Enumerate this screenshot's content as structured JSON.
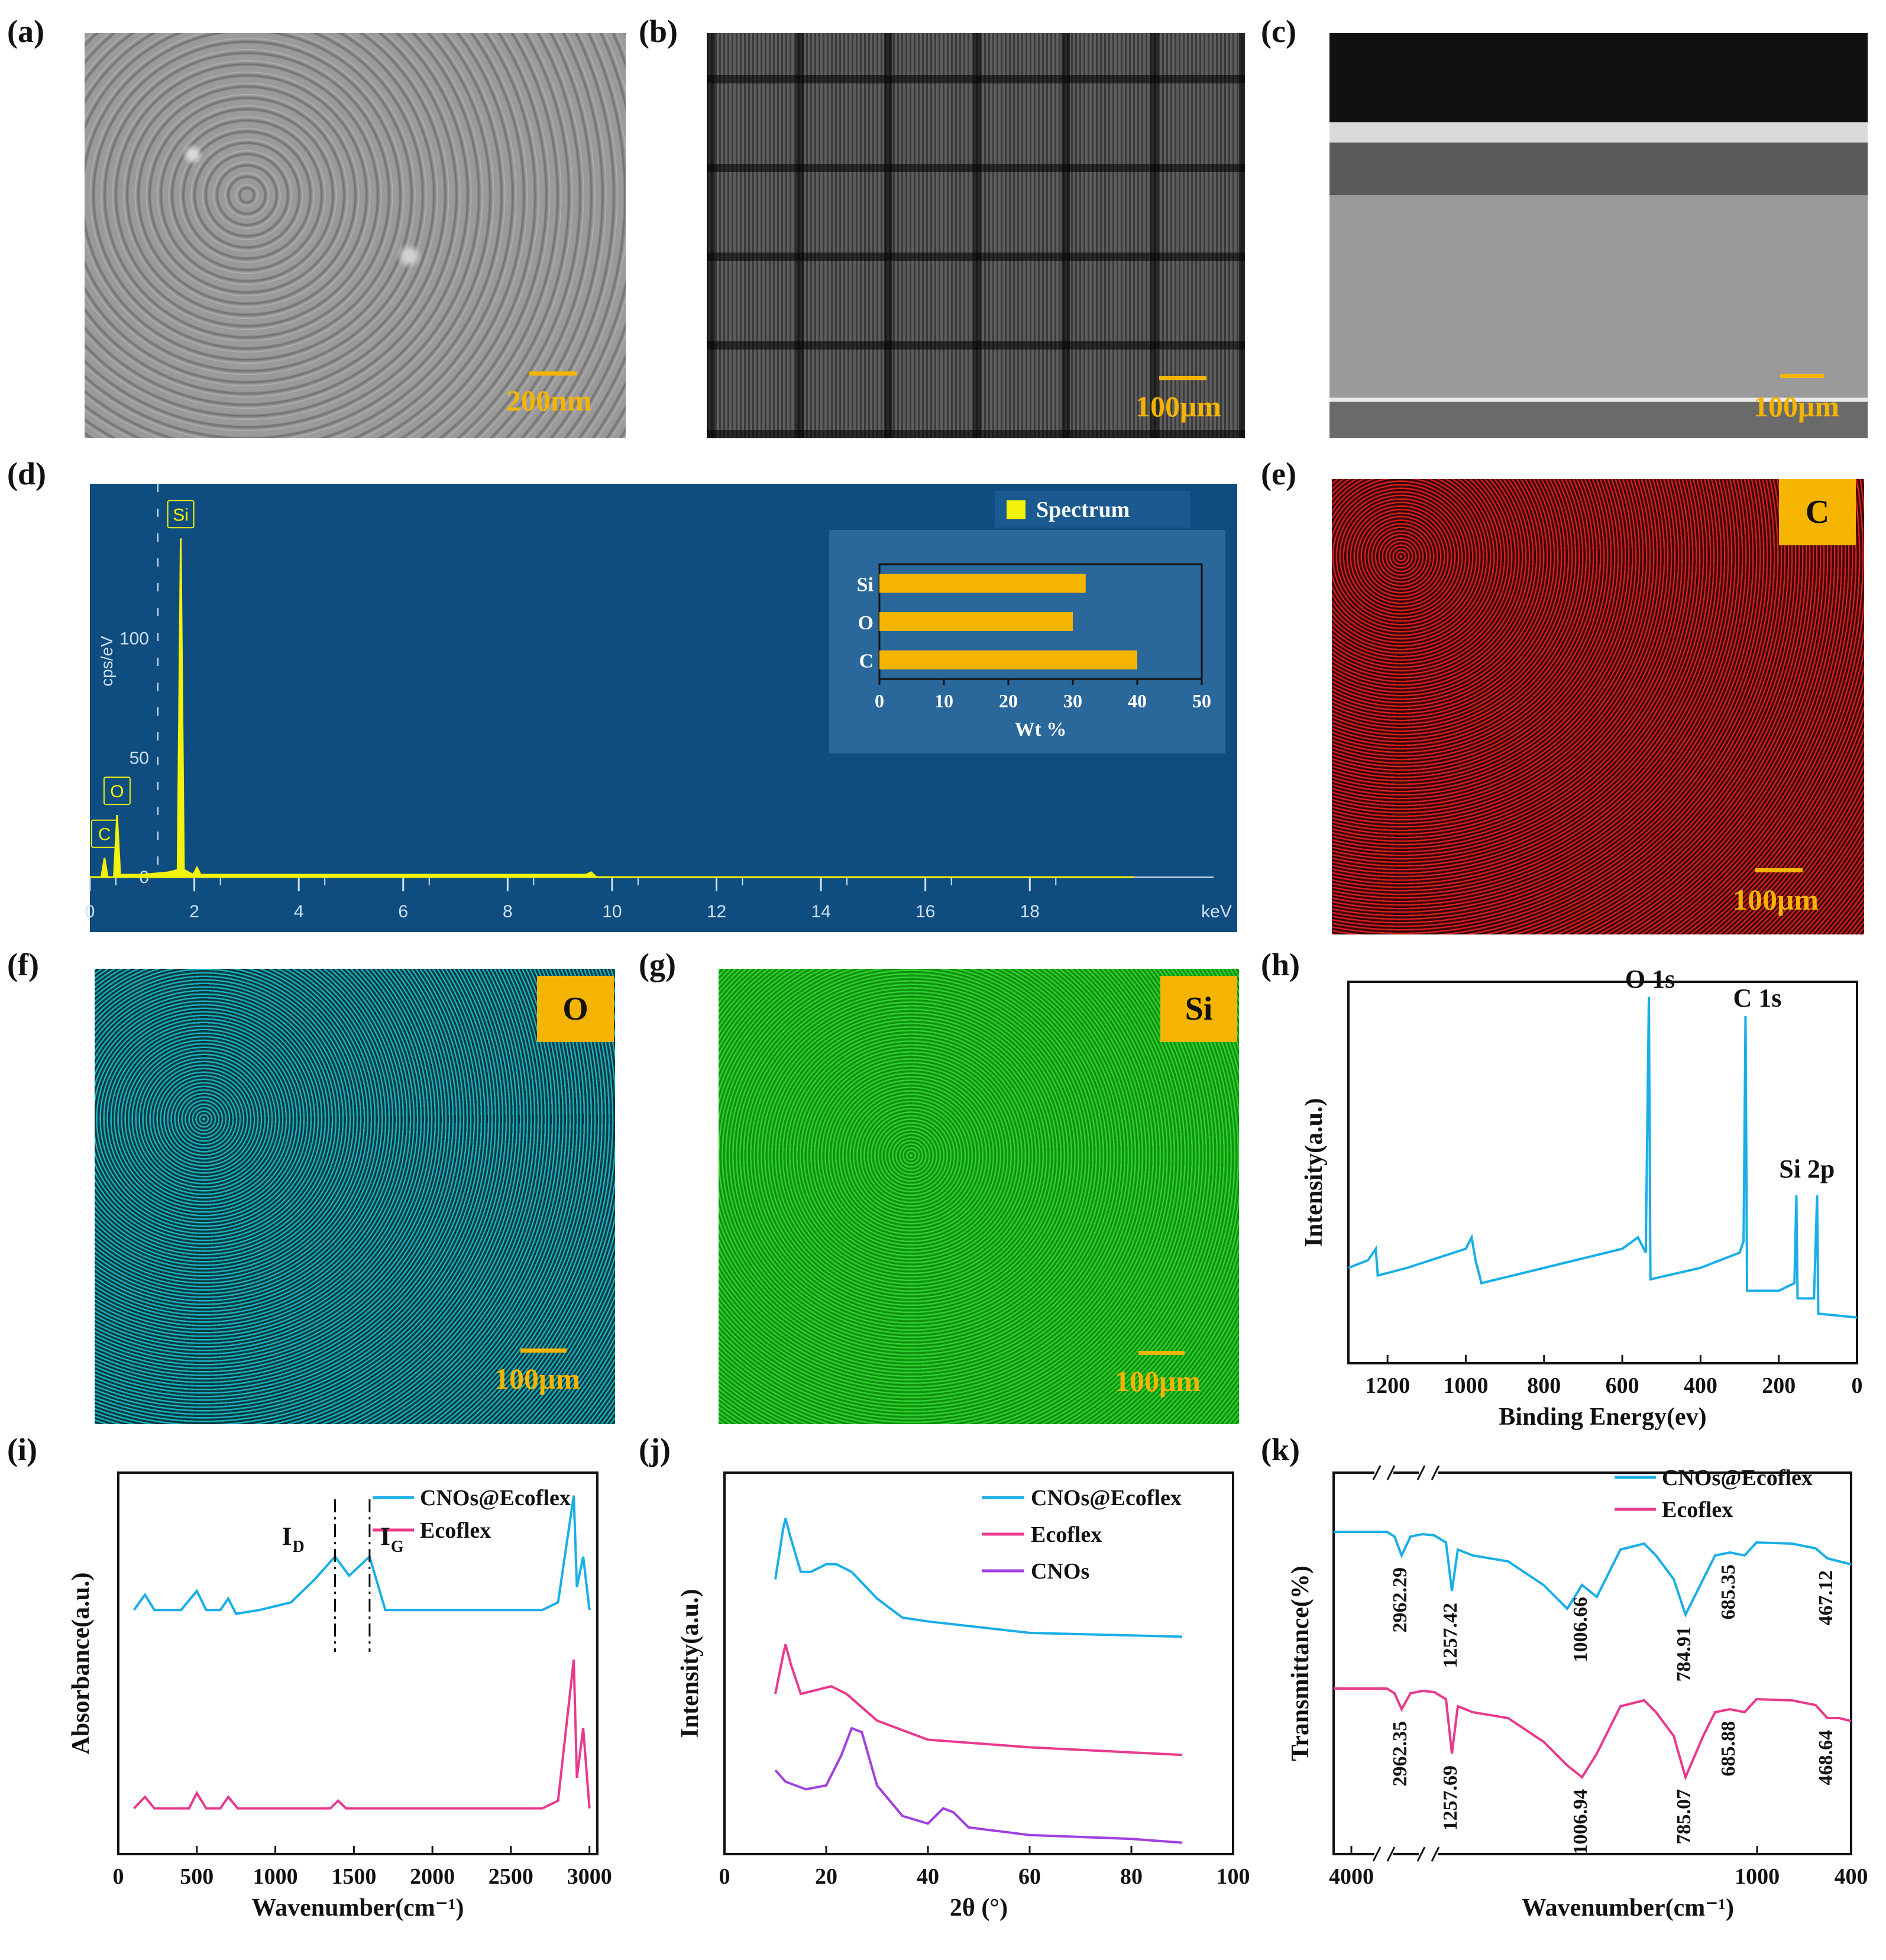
{
  "labels": {
    "a": "(a)",
    "b": "(b)",
    "c": "(c)",
    "d": "(d)",
    "e": "(e)",
    "f": "(f)",
    "g": "(g)",
    "h": "(h)",
    "i": "(i)",
    "j": "(j)",
    "k": "(k)"
  },
  "scalebars": {
    "a": "200nm",
    "b": "100μm",
    "c": "100μm",
    "e": "100μm",
    "f": "100μm",
    "g": "100μm"
  },
  "maps": {
    "e": "C",
    "f": "O",
    "g": "Si"
  },
  "colors": {
    "accent": "#f5b400",
    "cyan": "#19aee8",
    "pink": "#e8398d",
    "purple": "#a13fe0",
    "eds_bg": "#0f4c80",
    "eds_peak": "#f2f20a",
    "map_c": "#d81e1e",
    "map_o": "#17b3c2",
    "map_si": "#1fc21f"
  },
  "chart_data": [
    {
      "id": "d",
      "type": "line",
      "ylabel": "cps/eV",
      "xunit": "keV",
      "xticks": [
        0,
        2,
        4,
        6,
        8,
        10,
        12,
        14,
        16,
        18
      ],
      "yticks": [
        0,
        50,
        100
      ],
      "xlim": [
        0,
        20.5
      ],
      "ylim": [
        0,
        150
      ],
      "peak_labels": [
        "Si",
        "O",
        "C"
      ],
      "peaks": [
        {
          "x": 0.28,
          "y": 8
        },
        {
          "x": 0.52,
          "y": 26
        },
        {
          "x": 1.74,
          "y": 142
        },
        {
          "x": 2.05,
          "y": 4
        }
      ],
      "legend": "Spectrum",
      "inset": {
        "type": "bar",
        "categories": [
          "Si",
          "O",
          "C"
        ],
        "values": [
          32,
          30,
          40
        ],
        "xlabel": "Wt %",
        "xticks": [
          0,
          10,
          20,
          30,
          40,
          50
        ],
        "xlim": [
          0,
          50
        ]
      }
    },
    {
      "id": "h",
      "type": "line",
      "xlabel": "Binding Energy(ev)",
      "ylabel": "Intensity(a.u.)",
      "xticks": [
        1200,
        1000,
        800,
        600,
        400,
        200,
        0
      ],
      "xlim": [
        1300,
        0
      ],
      "annotations": [
        "O 1s",
        "C 1s",
        "Si 2p"
      ],
      "points": [
        [
          1300,
          25
        ],
        [
          1250,
          27
        ],
        [
          1230,
          30
        ],
        [
          1225,
          23
        ],
        [
          1150,
          25
        ],
        [
          1000,
          30
        ],
        [
          985,
          33
        ],
        [
          975,
          27
        ],
        [
          960,
          21
        ],
        [
          800,
          25
        ],
        [
          600,
          30
        ],
        [
          560,
          33
        ],
        [
          540,
          29
        ],
        [
          532,
          96
        ],
        [
          528,
          22
        ],
        [
          400,
          25
        ],
        [
          300,
          29
        ],
        [
          290,
          32
        ],
        [
          285,
          91
        ],
        [
          281,
          19
        ],
        [
          200,
          19
        ],
        [
          160,
          21
        ],
        [
          155,
          44
        ],
        [
          152,
          17
        ],
        [
          110,
          17
        ],
        [
          102,
          44
        ],
        [
          99,
          13
        ],
        [
          0,
          12
        ]
      ]
    },
    {
      "id": "i",
      "type": "line",
      "xlabel": "Wavenumber(cm⁻¹)",
      "ylabel": "Absorbance(a.u.)",
      "xticks": [
        0,
        500,
        1000,
        1500,
        2000,
        2500,
        3000
      ],
      "xlim": [
        0,
        3050
      ],
      "annotations": [
        "I",
        "D",
        "I",
        "G"
      ],
      "marker_lines": [
        1380,
        1600
      ],
      "series": [
        {
          "name": "CNOs@Ecoflex",
          "points": [
            [
              100,
              64
            ],
            [
              170,
              68
            ],
            [
              230,
              64
            ],
            [
              400,
              64
            ],
            [
              500,
              69
            ],
            [
              560,
              64
            ],
            [
              650,
              64
            ],
            [
              700,
              67
            ],
            [
              750,
              63
            ],
            [
              900,
              64
            ],
            [
              1100,
              66
            ],
            [
              1250,
              72
            ],
            [
              1380,
              78
            ],
            [
              1470,
              73
            ],
            [
              1600,
              78
            ],
            [
              1700,
              64
            ],
            [
              2700,
              64
            ],
            [
              2800,
              66
            ],
            [
              2900,
              94
            ],
            [
              2920,
              70
            ],
            [
              2960,
              78
            ],
            [
              3000,
              64
            ]
          ]
        },
        {
          "name": "Ecoflex",
          "points": [
            [
              100,
              12
            ],
            [
              170,
              15
            ],
            [
              230,
              12
            ],
            [
              450,
              12
            ],
            [
              500,
              16
            ],
            [
              560,
              12
            ],
            [
              650,
              12
            ],
            [
              700,
              15
            ],
            [
              760,
              12
            ],
            [
              1350,
              12
            ],
            [
              1400,
              14
            ],
            [
              1450,
              12
            ],
            [
              2700,
              12
            ],
            [
              2800,
              14
            ],
            [
              2900,
              51
            ],
            [
              2920,
              20
            ],
            [
              2960,
              33
            ],
            [
              3000,
              12
            ]
          ]
        }
      ]
    },
    {
      "id": "j",
      "type": "line",
      "xlabel": "2θ (°)",
      "ylabel": "Intensity(a.u.)",
      "xticks": [
        0,
        20,
        40,
        60,
        80,
        100
      ],
      "xlim": [
        0,
        100
      ],
      "series": [
        {
          "name": "CNOs@Ecoflex",
          "points": [
            [
              10,
              72
            ],
            [
              11.5,
              85
            ],
            [
              12,
              88
            ],
            [
              13,
              83
            ],
            [
              15,
              74
            ],
            [
              17,
              74
            ],
            [
              20,
              76
            ],
            [
              22,
              76
            ],
            [
              25,
              74
            ],
            [
              30,
              67
            ],
            [
              35,
              62
            ],
            [
              40,
              61
            ],
            [
              60,
              58
            ],
            [
              90,
              57
            ]
          ]
        },
        {
          "name": "Ecoflex",
          "points": [
            [
              10,
              42
            ],
            [
              11.5,
              52
            ],
            [
              12,
              55
            ],
            [
              13,
              50
            ],
            [
              15,
              42
            ],
            [
              18,
              43
            ],
            [
              21,
              44
            ],
            [
              24,
              42
            ],
            [
              30,
              35
            ],
            [
              40,
              30
            ],
            [
              60,
              28
            ],
            [
              90,
              26
            ]
          ]
        },
        {
          "name": "CNOs"
        }
      ],
      "cnos_points": [
        [
          10,
          22
        ],
        [
          12,
          19
        ],
        [
          16,
          17
        ],
        [
          20,
          18
        ],
        [
          23,
          26
        ],
        [
          25,
          33
        ],
        [
          27,
          32
        ],
        [
          30,
          18
        ],
        [
          35,
          10
        ],
        [
          40,
          8
        ],
        [
          43,
          12
        ],
        [
          45,
          11
        ],
        [
          48,
          7
        ],
        [
          60,
          5
        ],
        [
          80,
          4
        ],
        [
          90,
          3
        ]
      ]
    },
    {
      "id": "k",
      "type": "line",
      "xlabel": "Wavenumber(cm⁻¹)",
      "ylabel": "Transmittance(%)",
      "xticks": [
        4000,
        1000,
        400
      ],
      "series": [
        {
          "name": "CNOs@Ecoflex",
          "peaks": [
            "2962.29",
            "1257.42",
            "1006.66",
            "784.91",
            "685.35",
            "467.12"
          ]
        },
        {
          "name": "Ecoflex",
          "peaks": [
            "2962.35",
            "1257.69",
            "1006.94",
            "785.07",
            "685.88",
            "468.64"
          ]
        }
      ]
    }
  ]
}
